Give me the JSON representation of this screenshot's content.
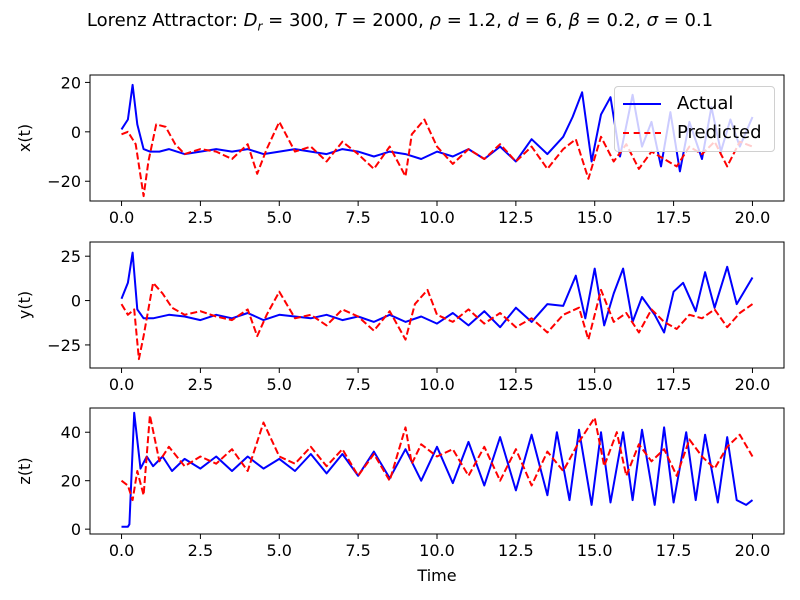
{
  "chart_data": [
    {
      "type": "line",
      "title": "Lorenz Attractor: D_r = 300, T = 2000, ρ = 1.2, d = 6, β = 0.2, σ = 0.1",
      "xlabel": "",
      "ylabel": "x(t)",
      "xlim": [
        -1.0,
        21.0
      ],
      "ylim": [
        -28,
        23
      ],
      "xticks": [
        "0.0",
        "2.5",
        "5.0",
        "7.5",
        "10.0",
        "12.5",
        "15.0",
        "17.5",
        "20.0"
      ],
      "yticks": [
        "20",
        "0",
        "−20"
      ],
      "ytick_values": [
        20,
        0,
        -20
      ],
      "legend": "top-right",
      "series": [
        {
          "name": "Actual",
          "color": "#0000ff",
          "style": "solid",
          "x": [
            0,
            0.2,
            0.35,
            0.5,
            0.7,
            0.9,
            1.2,
            1.5,
            2.0,
            2.5,
            3.0,
            3.5,
            4.0,
            4.5,
            5.0,
            5.5,
            6.0,
            6.5,
            7.0,
            7.5,
            8.0,
            8.5,
            9.0,
            9.5,
            10.0,
            10.5,
            11.0,
            11.5,
            12.0,
            12.5,
            13.0,
            13.5,
            14.0,
            14.3,
            14.6,
            14.9,
            15.2,
            15.5,
            15.8,
            16.2,
            16.5,
            16.8,
            17.1,
            17.4,
            17.7,
            18.0,
            18.4,
            18.7,
            19.0,
            19.3,
            19.6,
            20.0
          ],
          "y": [
            1,
            5,
            19,
            3,
            -7,
            -8,
            -8,
            -7,
            -9,
            -8,
            -7,
            -8,
            -7,
            -9,
            -8,
            -7,
            -8,
            -9,
            -7,
            -8,
            -10,
            -8,
            -9,
            -11,
            -8,
            -10,
            -7,
            -11,
            -6,
            -12,
            -3,
            -9,
            -2,
            6,
            16,
            -12,
            7,
            14,
            -10,
            15,
            -6,
            4,
            -14,
            8,
            -16,
            4,
            -11,
            10,
            -8,
            5,
            -6,
            6
          ]
        },
        {
          "name": "Predicted",
          "color": "#ff0000",
          "style": "dashed",
          "x": [
            0,
            0.2,
            0.45,
            0.7,
            0.85,
            1.1,
            1.4,
            1.7,
            2.0,
            2.5,
            3.0,
            3.5,
            4.0,
            4.3,
            4.6,
            5.0,
            5.5,
            6.0,
            6.5,
            7.0,
            7.5,
            8.0,
            8.5,
            9.0,
            9.2,
            9.6,
            10.0,
            10.5,
            11.0,
            11.5,
            12.0,
            12.5,
            13.0,
            13.5,
            14.0,
            14.4,
            14.8,
            15.2,
            15.6,
            16.0,
            16.4,
            16.8,
            17.2,
            17.6,
            18.0,
            18.4,
            18.8,
            19.2,
            19.6,
            20.0
          ],
          "y": [
            -1,
            0,
            -5,
            -26,
            -12,
            3,
            2,
            -5,
            -9,
            -7,
            -8,
            -11,
            -5,
            -17,
            -7,
            4,
            -8,
            -6,
            -12,
            -4,
            -9,
            -15,
            -6,
            -18,
            -1,
            5,
            -6,
            -13,
            -7,
            -11,
            -5,
            -12,
            -6,
            -15,
            -7,
            -3,
            -19,
            -2,
            -12,
            -5,
            -15,
            -8,
            -11,
            -14,
            -6,
            -9,
            -4,
            -14,
            -4,
            -6
          ]
        }
      ]
    },
    {
      "type": "line",
      "xlabel": "",
      "ylabel": "y(t)",
      "xlim": [
        -1.0,
        21.0
      ],
      "ylim": [
        -38,
        33
      ],
      "xticks": [
        "0.0",
        "2.5",
        "5.0",
        "7.5",
        "10.0",
        "12.5",
        "15.0",
        "17.5",
        "20.0"
      ],
      "yticks": [
        "25",
        "0",
        "−25"
      ],
      "ytick_values": [
        25,
        0,
        -25
      ],
      "series": [
        {
          "name": "Actual",
          "color": "#0000ff",
          "style": "solid",
          "x": [
            0,
            0.2,
            0.35,
            0.5,
            0.7,
            1.0,
            1.5,
            2.0,
            2.5,
            3.0,
            3.5,
            4.0,
            4.5,
            5.0,
            5.5,
            6.0,
            6.5,
            7.0,
            7.5,
            8.0,
            8.5,
            9.0,
            9.5,
            10.0,
            10.5,
            11.0,
            11.5,
            12.0,
            12.5,
            13.0,
            13.5,
            14.0,
            14.4,
            14.7,
            15.0,
            15.3,
            15.6,
            15.9,
            16.2,
            16.5,
            16.9,
            17.2,
            17.5,
            17.8,
            18.2,
            18.5,
            18.8,
            19.2,
            19.5,
            20.0
          ],
          "y": [
            1,
            10,
            27,
            -5,
            -10,
            -10,
            -8,
            -9,
            -11,
            -8,
            -10,
            -7,
            -11,
            -8,
            -9,
            -10,
            -8,
            -11,
            -9,
            -12,
            -8,
            -12,
            -9,
            -13,
            -7,
            -14,
            -6,
            -15,
            -4,
            -12,
            -2,
            -3,
            14,
            -10,
            18,
            -14,
            4,
            18,
            -12,
            2,
            -8,
            -18,
            5,
            10,
            -6,
            16,
            -4,
            19,
            -2,
            13
          ]
        },
        {
          "name": "Predicted",
          "color": "#ff0000",
          "style": "dashed",
          "x": [
            0,
            0.2,
            0.4,
            0.55,
            0.7,
            1.0,
            1.3,
            1.6,
            2.0,
            2.5,
            3.0,
            3.5,
            4.0,
            4.3,
            4.6,
            5.0,
            5.5,
            6.0,
            6.5,
            7.0,
            7.5,
            8.0,
            8.5,
            9.0,
            9.3,
            9.7,
            10.0,
            10.5,
            11.0,
            11.5,
            12.0,
            12.5,
            13.0,
            13.5,
            14.0,
            14.5,
            14.8,
            15.2,
            15.6,
            16.0,
            16.4,
            16.8,
            17.2,
            17.6,
            18.0,
            18.4,
            18.8,
            19.2,
            19.6,
            20.0
          ],
          "y": [
            -2,
            -8,
            -5,
            -33,
            -20,
            10,
            4,
            -4,
            -8,
            -6,
            -9,
            -11,
            -5,
            -20,
            -8,
            5,
            -10,
            -8,
            -14,
            -5,
            -9,
            -17,
            -6,
            -22,
            -2,
            6,
            -8,
            -12,
            -5,
            -13,
            -7,
            -15,
            -10,
            -18,
            -8,
            -4,
            -22,
            6,
            -12,
            -7,
            -18,
            -5,
            -12,
            -16,
            -8,
            -10,
            -5,
            -15,
            -7,
            -2
          ]
        }
      ]
    },
    {
      "type": "line",
      "xlabel": "Time",
      "ylabel": "z(t)",
      "xlim": [
        -1.0,
        21.0
      ],
      "ylim": [
        -2,
        50
      ],
      "xticks": [
        "0.0",
        "2.5",
        "5.0",
        "7.5",
        "10.0",
        "12.5",
        "15.0",
        "17.5",
        "20.0"
      ],
      "yticks": [
        "40",
        "20",
        "0"
      ],
      "ytick_values": [
        40,
        20,
        0
      ],
      "series": [
        {
          "name": "Actual",
          "color": "#0000ff",
          "style": "solid",
          "x": [
            0,
            0.2,
            0.25,
            0.4,
            0.6,
            0.8,
            1.0,
            1.3,
            1.6,
            2.0,
            2.5,
            3.0,
            3.5,
            4.0,
            4.5,
            5.0,
            5.5,
            6.0,
            6.5,
            7.0,
            7.5,
            8.0,
            8.5,
            9.0,
            9.5,
            10.0,
            10.5,
            11.0,
            11.5,
            12.0,
            12.5,
            13.0,
            13.5,
            13.8,
            14.2,
            14.5,
            14.9,
            15.2,
            15.5,
            15.9,
            16.2,
            16.5,
            16.9,
            17.2,
            17.5,
            17.9,
            18.2,
            18.5,
            18.9,
            19.2,
            19.5,
            19.8,
            20.0
          ],
          "y": [
            1,
            1,
            2,
            48,
            25,
            30,
            26,
            30,
            24,
            29,
            25,
            30,
            24,
            30,
            25,
            29,
            24,
            31,
            23,
            31,
            22,
            32,
            21,
            33,
            20,
            34,
            19,
            36,
            18,
            38,
            16,
            39,
            14,
            40,
            12,
            41,
            10,
            40,
            11,
            40,
            12,
            41,
            10,
            42,
            11,
            40,
            12,
            39,
            11,
            38,
            12,
            10,
            12
          ]
        },
        {
          "name": "Predicted",
          "color": "#ff0000",
          "style": "dashed",
          "x": [
            0,
            0.2,
            0.35,
            0.5,
            0.7,
            0.9,
            1.2,
            1.5,
            2.0,
            2.5,
            3.0,
            3.5,
            4.0,
            4.5,
            5.0,
            5.5,
            6.0,
            6.5,
            7.0,
            7.5,
            8.0,
            8.5,
            9.0,
            9.2,
            9.5,
            10.0,
            10.5,
            11.0,
            11.5,
            12.0,
            12.5,
            13.0,
            13.5,
            14.0,
            14.5,
            15.0,
            15.3,
            15.7,
            16.0,
            16.4,
            16.8,
            17.2,
            17.6,
            18.0,
            18.4,
            18.8,
            19.2,
            19.6,
            20.0
          ],
          "y": [
            20,
            18,
            12,
            24,
            14,
            47,
            28,
            34,
            26,
            30,
            27,
            33,
            24,
            44,
            30,
            27,
            34,
            26,
            33,
            22,
            31,
            20,
            42,
            27,
            35,
            30,
            33,
            22,
            34,
            20,
            33,
            18,
            32,
            24,
            36,
            46,
            26,
            40,
            22,
            35,
            28,
            33,
            22,
            37,
            30,
            25,
            34,
            39,
            30
          ]
        }
      ]
    }
  ],
  "legend": {
    "actual": "Actual",
    "predicted": "Predicted"
  }
}
